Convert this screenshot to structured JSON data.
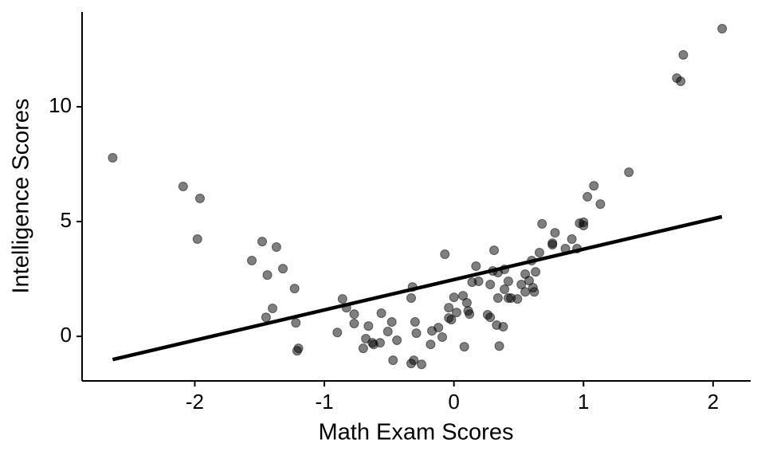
{
  "chart_data": {
    "type": "scatter",
    "x_label": "Math Exam Scores",
    "y_label": "Intelligence Scores",
    "xlim": [
      -2.87,
      2.29
    ],
    "ylim": [
      -1.94,
      14.13
    ],
    "xticks": [
      -2,
      -1,
      0,
      1,
      2
    ],
    "yticks": [
      0,
      5,
      10
    ],
    "grid": false,
    "series": [
      {
        "color": "#000000",
        "alpha": 0.5,
        "x": [
          -2.634,
          -2.09,
          -1.96,
          -1.98,
          -1.48,
          -1.56,
          -1.37,
          -1.44,
          -1.32,
          -1.4,
          -1.45,
          -1.23,
          -1.22,
          -1.2,
          -1.21,
          -0.86,
          -0.83,
          -0.77,
          -0.77,
          -0.9,
          -0.66,
          -0.68,
          -0.7,
          -0.63,
          -0.62,
          -0.57,
          -0.56,
          -0.48,
          -0.51,
          -0.44,
          -0.47,
          -0.33,
          -0.32,
          -0.3,
          -0.29,
          -0.33,
          -0.31,
          -0.25,
          -0.18,
          -0.17,
          -0.12,
          -0.09,
          -0.07,
          -0.04,
          -0.02,
          -0.04,
          0.0,
          0.02,
          0.07,
          0.1,
          0.11,
          0.12,
          0.08,
          0.14,
          0.17,
          0.19,
          0.26,
          0.28,
          0.28,
          0.31,
          0.3,
          0.34,
          0.33,
          0.34,
          0.35,
          0.38,
          0.39,
          0.39,
          0.42,
          0.42,
          0.44,
          0.49,
          0.52,
          0.55,
          0.55,
          0.58,
          0.61,
          0.62,
          0.63,
          0.6,
          0.66,
          0.68,
          0.76,
          0.76,
          0.78,
          0.86,
          0.91,
          0.95,
          0.97,
          1.0,
          1.0,
          1.03,
          1.08,
          1.13,
          1.35,
          1.72,
          1.75,
          1.77,
          2.07
        ],
        "values": [
          7.78,
          6.53,
          6.01,
          4.24,
          4.13,
          3.3,
          3.89,
          2.67,
          2.95,
          1.22,
          0.83,
          2.08,
          0.59,
          -0.52,
          -0.63,
          1.63,
          1.25,
          0.97,
          0.56,
          0.17,
          0.45,
          -0.1,
          -0.52,
          -0.28,
          -0.35,
          -0.28,
          1.01,
          0.63,
          0.21,
          -0.17,
          -1.04,
          1.67,
          2.15,
          0.63,
          0.14,
          -1.18,
          -1.04,
          -1.22,
          -0.35,
          0.24,
          0.38,
          -0.03,
          3.58,
          1.25,
          0.73,
          0.8,
          1.7,
          1.04,
          1.77,
          1.46,
          1.11,
          0.97,
          -0.45,
          2.36,
          3.06,
          2.4,
          0.94,
          0.83,
          2.26,
          3.75,
          2.85,
          2.78,
          0.49,
          1.67,
          -0.42,
          0.42,
          2.05,
          2.92,
          2.4,
          1.67,
          1.67,
          1.63,
          2.26,
          2.71,
          1.94,
          2.43,
          2.12,
          1.94,
          2.81,
          3.3,
          3.65,
          4.9,
          3.99,
          4.06,
          4.51,
          3.82,
          4.24,
          3.82,
          4.93,
          4.83,
          4.97,
          6.08,
          6.56,
          5.76,
          7.15,
          11.25,
          11.11,
          12.26,
          13.4
        ]
      }
    ],
    "fit_line": {
      "color": "#000000",
      "x": [
        -2.634,
        2.068
      ],
      "values": [
        -1.01,
        5.21
      ]
    }
  }
}
